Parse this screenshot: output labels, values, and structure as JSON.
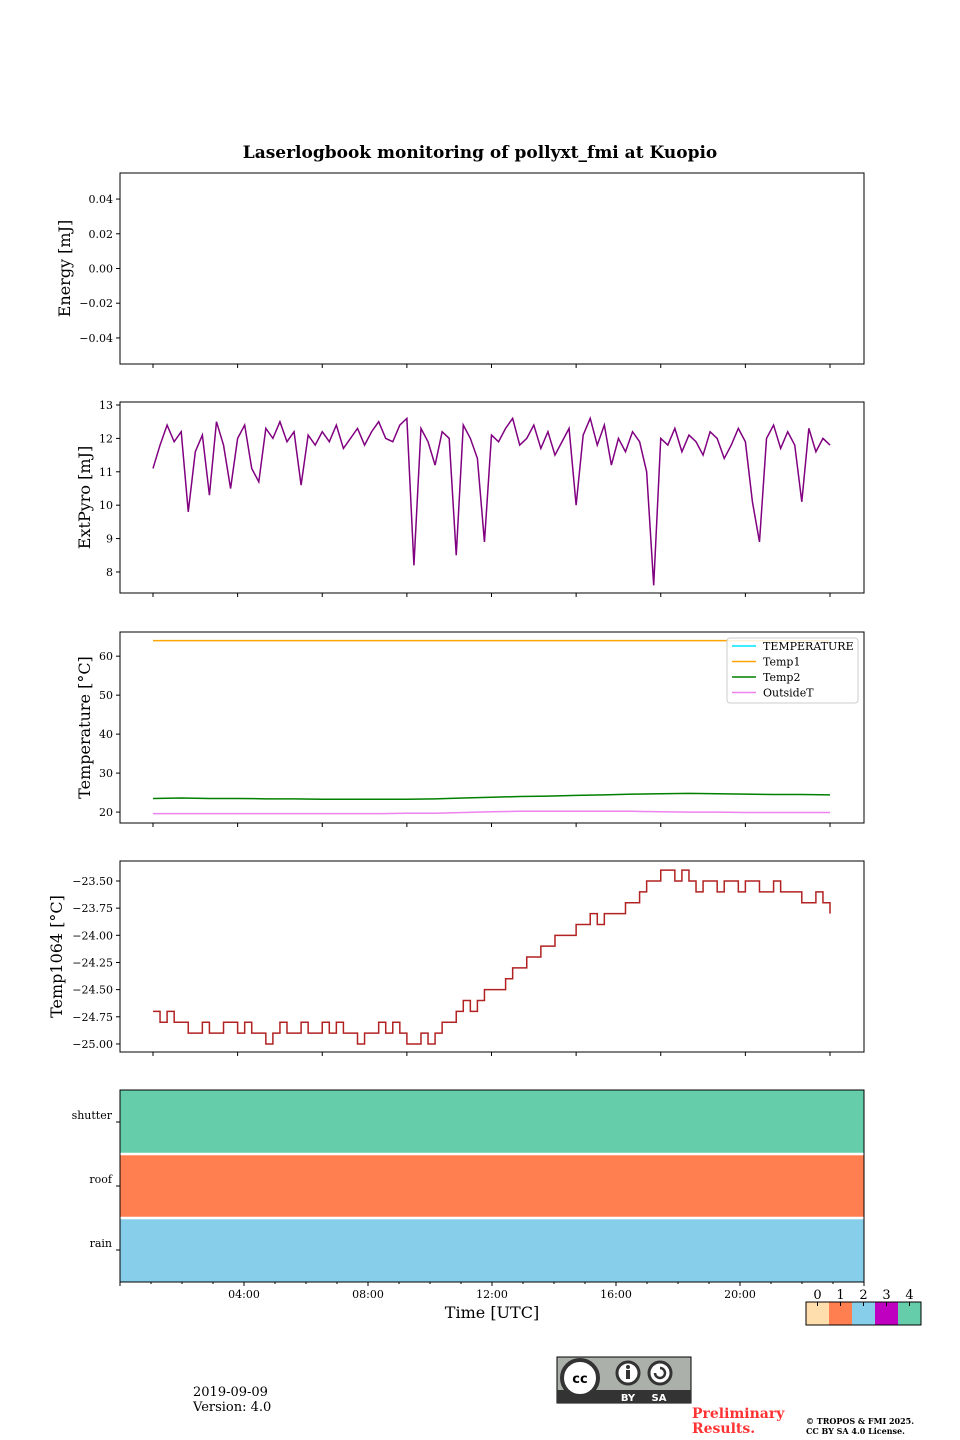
{
  "chart_data": [
    {
      "type": "line",
      "title": "Laserlogbook monitoring of pollyxt_fmi at Kuopio",
      "ylabel": "Energy [mJ]",
      "ylim": [
        -0.055,
        0.055
      ],
      "yticks": [
        0.04,
        0.02,
        0.0,
        -0.02,
        -0.04
      ],
      "ytick_labels": [
        "0.04",
        "0.02",
        "0.00",
        "−0.02",
        "−0.04"
      ],
      "series": []
    },
    {
      "type": "line",
      "ylabel": "ExtPyro [mJ]",
      "ylim": [
        7.37,
        13.09
      ],
      "yticks": [
        13,
        12,
        11,
        10,
        9,
        8
      ],
      "ytick_labels": [
        "13",
        "12",
        "11",
        "10",
        "9",
        "8"
      ],
      "x_step_hours": 0.25,
      "series": [
        {
          "name": "ExtPyro",
          "color": "#800080",
          "values": [
            11.1,
            11.8,
            12.4,
            11.9,
            12.2,
            9.8,
            11.6,
            12.1,
            10.3,
            12.5,
            11.8,
            10.5,
            12.0,
            12.4,
            11.1,
            10.7,
            12.3,
            12.0,
            12.5,
            11.9,
            12.2,
            10.6,
            12.1,
            11.8,
            12.2,
            11.9,
            12.4,
            11.7,
            12.0,
            12.3,
            11.8,
            12.2,
            12.5,
            12.0,
            11.9,
            12.4,
            12.6,
            8.2,
            12.3,
            11.9,
            11.2,
            12.2,
            12.0,
            8.5,
            12.4,
            12.0,
            11.4,
            8.9,
            12.1,
            11.9,
            12.3,
            12.6,
            11.8,
            12.0,
            12.4,
            11.7,
            12.2,
            11.5,
            11.9,
            12.3,
            10.0,
            12.1,
            12.6,
            11.8,
            12.4,
            11.2,
            12.0,
            11.6,
            12.2,
            11.9,
            11.0,
            7.6,
            12.0,
            11.8,
            12.3,
            11.6,
            12.1,
            11.9,
            11.5,
            12.2,
            12.0,
            11.4,
            11.8,
            12.3,
            11.9,
            10.1,
            8.9,
            12.0,
            12.4,
            11.7,
            12.2,
            11.8,
            10.1,
            12.3,
            11.6,
            12.0,
            11.8
          ]
        }
      ]
    },
    {
      "type": "line",
      "ylabel": "Temperature [°C]",
      "ylim": [
        17.2,
        66.2
      ],
      "yticks": [
        60,
        50,
        40,
        30,
        20
      ],
      "ytick_labels": [
        "60",
        "50",
        "40",
        "30",
        "20"
      ],
      "legend_position": "upper-right",
      "x_step_hours": 1,
      "series": [
        {
          "name": "TEMPERATURE",
          "color": "#00e5ff",
          "values": []
        },
        {
          "name": "Temp1",
          "color": "#ffa500",
          "values": [
            64,
            64,
            64,
            64,
            64,
            64,
            64,
            64,
            64,
            64,
            64,
            64,
            64,
            64,
            64,
            64,
            64,
            64,
            64,
            64,
            64,
            64,
            64,
            64,
            64
          ]
        },
        {
          "name": "Temp2",
          "color": "#008000",
          "values": [
            23.5,
            23.6,
            23.5,
            23.5,
            23.4,
            23.4,
            23.3,
            23.3,
            23.3,
            23.3,
            23.4,
            23.6,
            23.8,
            24.0,
            24.1,
            24.3,
            24.4,
            24.6,
            24.7,
            24.8,
            24.7,
            24.6,
            24.5,
            24.5,
            24.4
          ]
        },
        {
          "name": "OutsideT",
          "color": "#ee82ee",
          "values": [
            19.6,
            19.6,
            19.6,
            19.6,
            19.6,
            19.6,
            19.6,
            19.6,
            19.6,
            19.7,
            19.7,
            19.9,
            20.1,
            20.2,
            20.2,
            20.2,
            20.2,
            20.2,
            20.1,
            20.0,
            20.0,
            19.9,
            19.9,
            19.9,
            19.9
          ]
        }
      ]
    },
    {
      "type": "line",
      "ylabel": "Temp1064 [°C]",
      "ylim": [
        -25.074,
        -23.316
      ],
      "yticks": [
        -23.5,
        -23.75,
        -24.0,
        -24.25,
        -24.5,
        -24.75,
        -25.0
      ],
      "ytick_labels": [
        "−23.50",
        "−23.75",
        "−24.00",
        "−24.25",
        "−24.50",
        "−24.75",
        "−25.00"
      ],
      "x_step_hours": 0.25,
      "series": [
        {
          "name": "Temp1064",
          "color": "#b22222",
          "values": [
            -24.7,
            -24.8,
            -24.7,
            -24.8,
            -24.8,
            -24.9,
            -24.9,
            -24.8,
            -24.9,
            -24.9,
            -24.8,
            -24.8,
            -24.9,
            -24.8,
            -24.9,
            -24.9,
            -25.0,
            -24.9,
            -24.8,
            -24.9,
            -24.9,
            -24.8,
            -24.9,
            -24.9,
            -24.8,
            -24.9,
            -24.8,
            -24.9,
            -24.9,
            -25.0,
            -24.9,
            -24.9,
            -24.8,
            -24.9,
            -24.8,
            -24.9,
            -25.0,
            -25.0,
            -24.9,
            -25.0,
            -24.9,
            -24.8,
            -24.8,
            -24.7,
            -24.6,
            -24.7,
            -24.6,
            -24.5,
            -24.5,
            -24.5,
            -24.4,
            -24.3,
            -24.3,
            -24.2,
            -24.2,
            -24.1,
            -24.1,
            -24.0,
            -24.0,
            -24.0,
            -23.9,
            -23.9,
            -23.8,
            -23.9,
            -23.8,
            -23.8,
            -23.8,
            -23.7,
            -23.7,
            -23.6,
            -23.5,
            -23.5,
            -23.4,
            -23.4,
            -23.5,
            -23.4,
            -23.5,
            -23.6,
            -23.5,
            -23.5,
            -23.6,
            -23.5,
            -23.5,
            -23.6,
            -23.5,
            -23.5,
            -23.6,
            -23.6,
            -23.5,
            -23.6,
            -23.6,
            -23.6,
            -23.7,
            -23.7,
            -23.6,
            -23.7,
            -23.8
          ]
        }
      ]
    },
    {
      "type": "heatmap",
      "xlabel": "Time [UTC]",
      "rows": [
        "shutter",
        "roof",
        "rain"
      ],
      "row_values": [
        4,
        1,
        2
      ],
      "xtick_labels": [
        "04:00",
        "08:00",
        "12:00",
        "16:00",
        "20:00"
      ],
      "xticks_hours": [
        4,
        8,
        12,
        16,
        20
      ],
      "xlim_hours": [
        0,
        24
      ],
      "colorbar": {
        "labels": [
          "0",
          "1",
          "2",
          "3",
          "4"
        ],
        "colors": [
          "#ffdead",
          "#ff7f50",
          "#87ceeb",
          "#c000c0",
          "#66cdaa"
        ]
      }
    }
  ],
  "footer": {
    "date": "2019-09-09",
    "version": "Version: 4.0",
    "preliminary_line1": "Preliminary",
    "preliminary_line2": "Results.",
    "copyright_line1": "© TROPOS & FMI 2025.",
    "copyright_line2": "CC BY SA 4.0 License.",
    "cc_by": "BY",
    "cc_sa": "SA",
    "cc_logo": "cc"
  }
}
